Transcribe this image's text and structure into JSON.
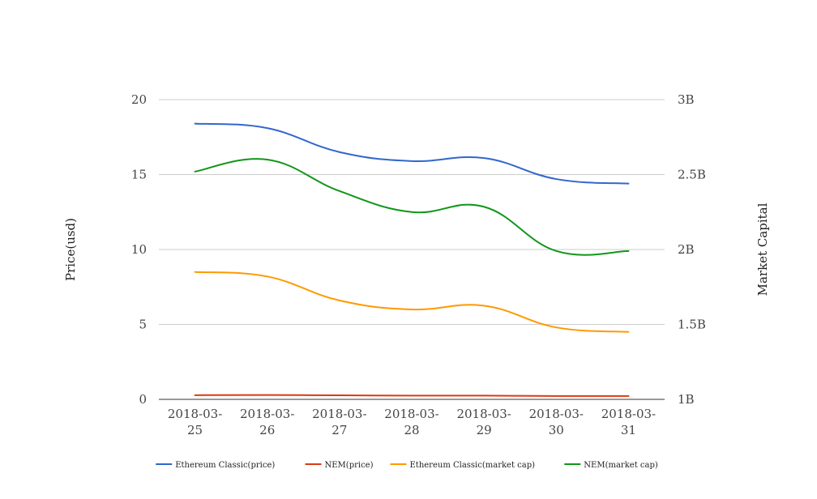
{
  "chart_data": {
    "type": "line",
    "title": "",
    "categories": [
      [
        "2018-03-",
        "25"
      ],
      [
        "2018-03-",
        "26"
      ],
      [
        "2018-03-",
        "27"
      ],
      [
        "2018-03-",
        "28"
      ],
      [
        "2018-03-",
        "29"
      ],
      [
        "2018-03-",
        "30"
      ],
      [
        "2018-03-",
        "31"
      ]
    ],
    "y_left": {
      "label": "Price(usd)",
      "min": 0,
      "max": 20,
      "ticks": [
        {
          "value": 0,
          "label": "0"
        },
        {
          "value": 5,
          "label": "5"
        },
        {
          "value": 10,
          "label": "10"
        },
        {
          "value": 15,
          "label": "15"
        },
        {
          "value": 20,
          "label": "20"
        }
      ]
    },
    "y_right": {
      "label": "Market Capital",
      "min": 1000000000,
      "max": 3000000000,
      "ticks": [
        {
          "value": 1000000000,
          "label": "1B"
        },
        {
          "value": 1500000000,
          "label": "1.5B"
        },
        {
          "value": 2000000000,
          "label": "2B"
        },
        {
          "value": 2500000000,
          "label": "2.5B"
        },
        {
          "value": 3000000000,
          "label": "3B"
        }
      ]
    },
    "grid": true,
    "legend_position": "bottom",
    "series": [
      {
        "name": "Ethereum Classic(price)",
        "axis": "left",
        "color": "#3366cc",
        "values": [
          18.4,
          18.1,
          16.5,
          15.9,
          16.1,
          14.7,
          14.4
        ]
      },
      {
        "name": "NEM(price)",
        "axis": "left",
        "color": "#dc3912",
        "values": [
          0.28,
          0.29,
          0.27,
          0.25,
          0.25,
          0.22,
          0.22
        ]
      },
      {
        "name": "Ethereum Classic(market cap)",
        "axis": "right",
        "color": "#ff9900",
        "values": [
          1850000000,
          1820000000,
          1660000000,
          1600000000,
          1625000000,
          1480000000,
          1450000000
        ]
      },
      {
        "name": "NEM(market cap)",
        "axis": "right",
        "color": "#109618",
        "values": [
          2520000000,
          2600000000,
          2390000000,
          2250000000,
          2285000000,
          1990000000,
          1990000000
        ]
      }
    ]
  }
}
